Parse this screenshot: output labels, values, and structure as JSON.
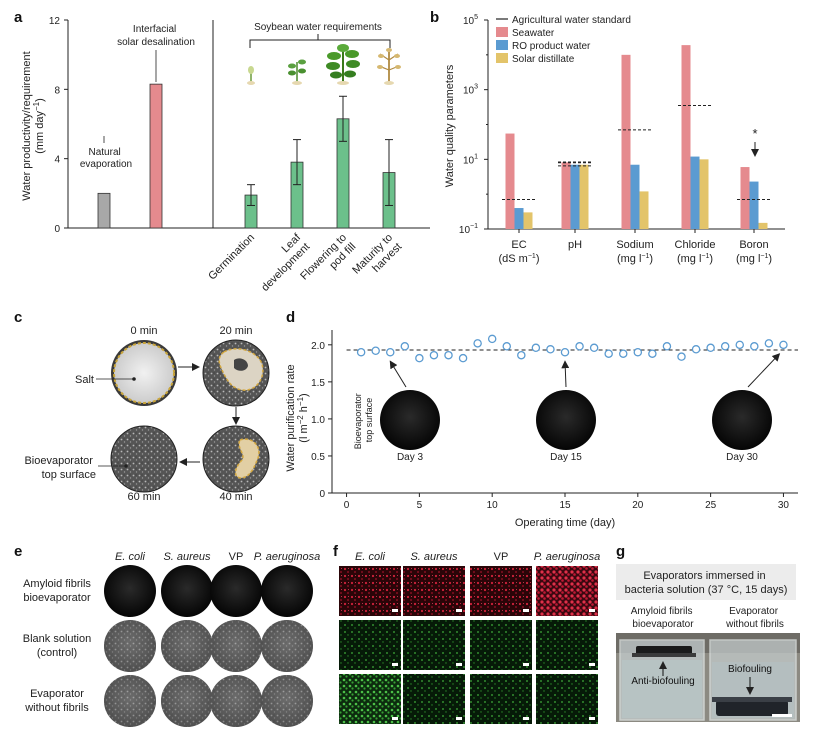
{
  "panels": {
    "a": "a",
    "b": "b",
    "c": "c",
    "d": "d",
    "e": "e",
    "f": "f",
    "g": "g"
  },
  "colors": {
    "grey": "#a8a8a8",
    "pink": "#e58a8e",
    "green": "#6cc08b",
    "blue": "#5b9bd1",
    "yellow": "#e3c46a",
    "circle": "#5b9bd1"
  },
  "chart_data": [
    {
      "panel": "a",
      "type": "bar",
      "title": "",
      "ylabel_line1": "Water productivity/requirement",
      "ylabel_line2": "(mm day",
      "ylabel_sup": "−1",
      "ylabel_close": ")",
      "ylim": [
        0,
        12
      ],
      "yticks": [
        "0",
        "4",
        "8",
        "12"
      ],
      "bars": [
        {
          "label": "Natural evaporation",
          "value": 2.0,
          "error": 0,
          "color": "grey"
        },
        {
          "label": "Interfacial solar desalination",
          "value": 8.3,
          "error": 0,
          "color": "pink"
        },
        {
          "label": "Germination",
          "value": 1.9,
          "error": 0.6,
          "color": "green"
        },
        {
          "label": "Leaf development",
          "value": 3.8,
          "error": 1.3,
          "color": "green"
        },
        {
          "label": "Flowering to pod fill",
          "value": 6.3,
          "error": 1.3,
          "color": "green"
        },
        {
          "label": "Maturity to harvest",
          "value": 3.2,
          "error": 1.9,
          "color": "green"
        }
      ],
      "annotations": {
        "natural": [
          "Natural",
          "evaporation"
        ],
        "interfacial": [
          "Interfacial",
          "solar desalination"
        ],
        "soybean": "Soybean water requirements"
      },
      "xlabels": [
        [
          "Germination"
        ],
        [
          "Leaf",
          "development"
        ],
        [
          "Flowering to",
          "pod fill"
        ],
        [
          "Maturity to",
          "harvest"
        ]
      ]
    },
    {
      "panel": "b",
      "type": "bar",
      "ylabel": "Water quality parameters",
      "yscale": "log",
      "ylim": [
        0.1,
        100000
      ],
      "yticks": [
        {
          "base": "10",
          "exp": "−1"
        },
        {
          "base": "10",
          "exp": "1"
        },
        {
          "base": "10",
          "exp": "3"
        },
        {
          "base": "10",
          "exp": "5"
        }
      ],
      "legend": {
        "position": "top-left",
        "entries": [
          "Agricultural water standard",
          "Seawater",
          "RO product water",
          "Solar distillate"
        ]
      },
      "categories": [
        {
          "name": "EC",
          "unit": "(dS m",
          "unit_sup": "−1",
          "unit_close": ")"
        },
        {
          "name": "pH",
          "unit": "",
          "unit_sup": "",
          "unit_close": ""
        },
        {
          "name": "Sodium",
          "unit": "(mg l",
          "unit_sup": "−1",
          "unit_close": ")"
        },
        {
          "name": "Chloride",
          "unit": "(mg l",
          "unit_sup": "−1",
          "unit_close": ")"
        },
        {
          "name": "Boron",
          "unit": "(mg l",
          "unit_sup": "−1",
          "unit_close": ")"
        }
      ],
      "series": [
        {
          "name": "Seawater",
          "color": "pink",
          "values": [
            55,
            8.2,
            10000,
            19000,
            6.0
          ]
        },
        {
          "name": "RO product water",
          "color": "blue",
          "values": [
            0.4,
            7.0,
            7.0,
            12,
            2.3
          ]
        },
        {
          "name": "Solar distillate",
          "color": "yellow",
          "values": [
            0.3,
            7.0,
            1.2,
            10,
            0.15
          ]
        }
      ],
      "standard": [
        0.7,
        8.0,
        70,
        350,
        0.7
      ],
      "pH_standard_range": [
        6.5,
        8.4
      ],
      "star": "*"
    },
    {
      "panel": "d",
      "type": "scatter",
      "xlabel": "Operating time (day)",
      "ylabel": "Water purification rate",
      "ylabel_unit": "(l m",
      "ylabel_unit_sup1": "−2",
      "ylabel_unit_mid": " h",
      "ylabel_unit_sup2": "−1",
      "ylabel_unit_close": ")",
      "xlim": [
        -1,
        31
      ],
      "ylim": [
        0,
        2.2
      ],
      "xticks": [
        "0",
        "5",
        "10",
        "15",
        "20",
        "25",
        "30"
      ],
      "yticks": [
        "0",
        "0.5",
        "1.0",
        "1.5",
        "2.0"
      ],
      "mean_line": 1.93,
      "points": [
        {
          "x": 1,
          "y": 1.9
        },
        {
          "x": 2,
          "y": 1.92
        },
        {
          "x": 3,
          "y": 1.9
        },
        {
          "x": 4,
          "y": 1.98
        },
        {
          "x": 5,
          "y": 1.82
        },
        {
          "x": 6,
          "y": 1.86
        },
        {
          "x": 7,
          "y": 1.86
        },
        {
          "x": 8,
          "y": 1.82
        },
        {
          "x": 9,
          "y": 2.02
        },
        {
          "x": 10,
          "y": 2.08
        },
        {
          "x": 11,
          "y": 1.98
        },
        {
          "x": 12,
          "y": 1.86
        },
        {
          "x": 13,
          "y": 1.96
        },
        {
          "x": 14,
          "y": 1.94
        },
        {
          "x": 15,
          "y": 1.9
        },
        {
          "x": 16,
          "y": 1.98
        },
        {
          "x": 17,
          "y": 1.96
        },
        {
          "x": 18,
          "y": 1.88
        },
        {
          "x": 19,
          "y": 1.88
        },
        {
          "x": 20,
          "y": 1.9
        },
        {
          "x": 21,
          "y": 1.88
        },
        {
          "x": 22,
          "y": 1.98
        },
        {
          "x": 23,
          "y": 1.84
        },
        {
          "x": 24,
          "y": 1.94
        },
        {
          "x": 25,
          "y": 1.96
        },
        {
          "x": 26,
          "y": 1.98
        },
        {
          "x": 27,
          "y": 2.0
        },
        {
          "x": 28,
          "y": 1.98
        },
        {
          "x": 29,
          "y": 2.02
        },
        {
          "x": 30,
          "y": 2.0
        }
      ],
      "insets": [
        {
          "label": "Day 3",
          "day": 3
        },
        {
          "label": "Day 15",
          "day": 15
        },
        {
          "label": "Day 30",
          "day": 30
        }
      ],
      "inset_caption": [
        "Bioevaporator",
        "top surface"
      ]
    }
  ],
  "panel_c": {
    "times": [
      "0 min",
      "20 min",
      "40 min",
      "60 min"
    ],
    "salt_label": "Salt",
    "bio_label": [
      "Bioevaporator",
      "top surface"
    ]
  },
  "panel_e": {
    "columns": [
      "E. coli",
      "S. aureus",
      "VP",
      "P. aeruginosa"
    ],
    "rows": [
      [
        "Amyloid fibrils",
        "bioevaporator"
      ],
      [
        "Blank solution",
        "(control)"
      ],
      [
        "Evaporator",
        "without fibrils"
      ]
    ]
  },
  "panel_f": {
    "columns": [
      "E. coli",
      "S. aureus",
      "VP",
      "P. aeruginosa"
    ]
  },
  "panel_g": {
    "caption": [
      "Evaporators immersed in",
      "bacteria solution (37 °C, 15 days)"
    ],
    "left_label": [
      "Amyloid fibrils",
      "bioevaporator"
    ],
    "right_label": [
      "Evaporator",
      "without fibrils"
    ],
    "anti": "Anti-biofouling",
    "bio": "Biofouling"
  }
}
